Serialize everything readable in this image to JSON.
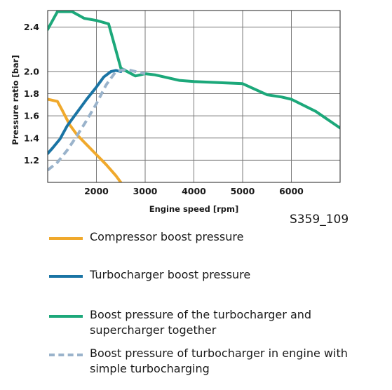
{
  "chart_data": {
    "type": "line",
    "xlabel": "Engine speed [rpm]",
    "ylabel": "Pressure ratio [bar]",
    "xlim": [
      1000,
      7000
    ],
    "ylim": [
      1.0,
      2.55
    ],
    "x_ticks": [
      2000,
      3000,
      4000,
      5000,
      6000
    ],
    "y_ticks": [
      1.2,
      1.4,
      1.6,
      1.8,
      2.0,
      2.4
    ],
    "grid": true,
    "legend_position": "below",
    "series": [
      {
        "name": "Compressor boost pressure",
        "color": "#f0a92c",
        "dash": false,
        "x": [
          1000,
          1200,
          1300,
          1450,
          1600,
          1800,
          2000,
          2200,
          2400,
          2500
        ],
        "y": [
          1.75,
          1.73,
          1.65,
          1.52,
          1.43,
          1.34,
          1.25,
          1.16,
          1.06,
          1.0
        ]
      },
      {
        "name": "Turbocharger boost pressure",
        "color": "#1a74a4",
        "dash": false,
        "x": [
          1000,
          1100,
          1250,
          1400,
          1600,
          1800,
          2000,
          2150,
          2300,
          2400,
          2500
        ],
        "y": [
          1.26,
          1.31,
          1.39,
          1.51,
          1.63,
          1.75,
          1.86,
          1.95,
          2.0,
          2.01,
          2.0
        ]
      },
      {
        "name": "Boost pressure of the turbocharger and supercharger together",
        "color": "#1ca87a",
        "dash": false,
        "x": [
          1000,
          1200,
          1500,
          1750,
          2000,
          2250,
          2500,
          2800,
          3000,
          3200,
          3700,
          4000,
          4500,
          5000,
          5500,
          5800,
          6000,
          6500,
          7000
        ],
        "y": [
          2.38,
          2.54,
          2.54,
          2.48,
          2.46,
          2.43,
          2.03,
          1.96,
          1.98,
          1.97,
          1.92,
          1.91,
          1.9,
          1.89,
          1.79,
          1.77,
          1.75,
          1.64,
          1.49
        ]
      },
      {
        "name": "Boost pressure of turbocharger in engine with simple turbocharging",
        "color": "#9ab3cb",
        "dash": true,
        "x": [
          1000,
          1200,
          1400,
          1600,
          1800,
          2000,
          2200,
          2400,
          2600,
          2800,
          3000
        ],
        "y": [
          1.11,
          1.18,
          1.29,
          1.42,
          1.56,
          1.71,
          1.88,
          2.0,
          2.02,
          2.0,
          1.98
        ]
      }
    ]
  },
  "figure_id": "S359_109",
  "legend": {
    "items": [
      {
        "text": "Compressor boost pressure",
        "color": "#f0a92c",
        "dash": false
      },
      {
        "text": "Turbocharger boost pressure",
        "color": "#1a74a4",
        "dash": false
      },
      {
        "text": "Boost pressure of the turbocharger and supercharger together",
        "color": "#1ca87a",
        "dash": false
      },
      {
        "text": "Boost pressure of turbocharger in engine with simple turbocharging",
        "color": "#9ab3cb",
        "dash": true
      }
    ]
  }
}
